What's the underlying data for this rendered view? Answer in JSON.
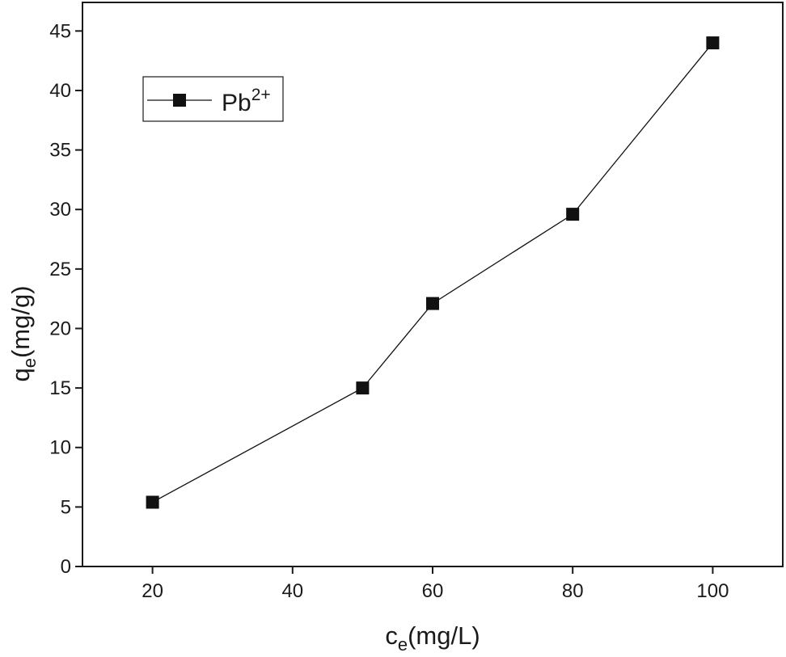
{
  "chart_data": {
    "type": "line",
    "x_label": {
      "text": "c",
      "subscript": "e",
      "suffix": "(mg/L)"
    },
    "y_label": {
      "text": "q",
      "subscript": "e",
      "suffix": "(mg/g)"
    },
    "x": [
      20,
      50,
      60,
      80,
      100
    ],
    "series": [
      {
        "name": "Pb",
        "name_superscript": "2+",
        "color": "#111111",
        "marker": "square",
        "values": [
          5.4,
          15.0,
          22.1,
          29.6,
          44.0
        ]
      }
    ],
    "xlim": [
      10,
      110
    ],
    "xticks": [
      20,
      40,
      60,
      80,
      100
    ],
    "ylim": [
      0,
      47.4
    ],
    "yticks": [
      0,
      5,
      10,
      15,
      20,
      25,
      30,
      35,
      40,
      45
    ],
    "grid": false,
    "legend": "upper left"
  }
}
